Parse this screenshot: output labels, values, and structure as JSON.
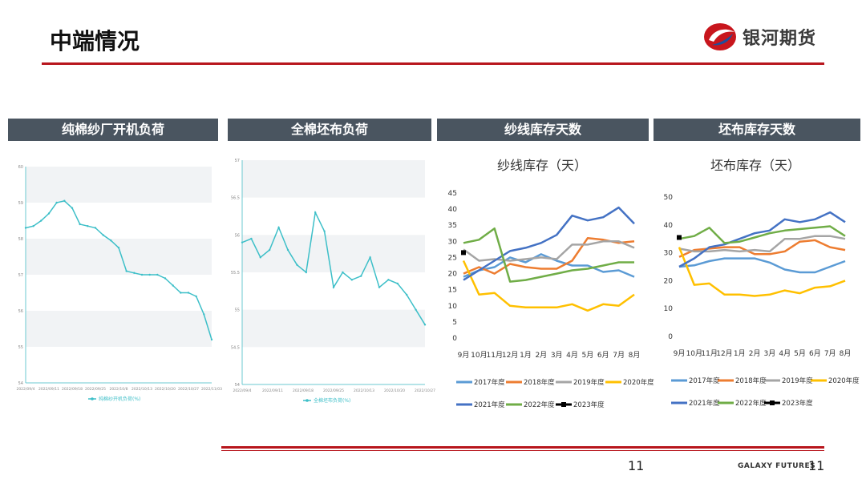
{
  "slide": {
    "title": "中端情况",
    "brand": "银河期货",
    "footer_brand": "GALAXY FUTURES",
    "page_number": "11",
    "page_number_left": "11"
  },
  "colors": {
    "accent_red": "#b8161d",
    "header_gray": "#4a5560",
    "teal_line": "#3dbfc8"
  },
  "panels": [
    {
      "header": "纯棉纱厂开机负荷"
    },
    {
      "header": "全棉坯布负荷"
    },
    {
      "header": "纱线库存天数"
    },
    {
      "header": "坯布库存天数"
    }
  ],
  "chart_data": [
    {
      "type": "line",
      "ylim": [
        54,
        60
      ],
      "yticks": [
        "54",
        "55",
        "56",
        "57",
        "58",
        "59",
        "60"
      ],
      "xticks": [
        "2022/09/4",
        "2022/09/11",
        "2022/09/18",
        "2022/09/25",
        "2022/10/8",
        "2022/10/13",
        "2022/10/20",
        "2022/10/27",
        "2022/11/03"
      ],
      "legend": "纯棉纱开机负荷(%)",
      "series": [
        {
          "values": [
            58.3,
            58.35,
            58.5,
            58.7,
            59.0,
            59.05,
            58.85,
            58.4,
            58.35,
            58.3,
            58.1,
            57.95,
            57.75,
            57.1,
            57.05,
            57.0,
            57.0,
            57.0,
            56.9,
            56.7,
            56.5,
            56.5,
            56.4,
            55.9,
            55.2
          ]
        }
      ]
    },
    {
      "type": "line",
      "ylim": [
        54,
        57
      ],
      "yticks": [
        "54",
        "54.5",
        "55",
        "55.5",
        "56",
        "56.5",
        "57"
      ],
      "xticks": [
        "2022/09/4",
        "2022/09/11",
        "2022/09/18",
        "2022/09/25",
        "2022/10/13",
        "2022/10/20",
        "2022/10/27"
      ],
      "legend": "全棉坯布负荷(%)",
      "series": [
        {
          "values": [
            55.9,
            55.95,
            55.7,
            55.8,
            56.1,
            55.8,
            55.6,
            55.5,
            56.3,
            56.05,
            55.3,
            55.5,
            55.4,
            55.45,
            55.7,
            55.3,
            55.4,
            55.35,
            55.2,
            55.0,
            54.8
          ]
        }
      ]
    },
    {
      "type": "line",
      "title": "纱线库存（天）",
      "ylim": [
        0,
        45
      ],
      "yticks": [
        0,
        5,
        10,
        15,
        20,
        25,
        30,
        35,
        40,
        45
      ],
      "categories": [
        "9月",
        "10月",
        "11月",
        "12月",
        "1月",
        "2月",
        "3月",
        "4月",
        "5月",
        "6月",
        "7月",
        "8月"
      ],
      "series": [
        {
          "name": "2017年度",
          "color": "#5b9bd5",
          "values": [
            19,
            21,
            22,
            25,
            23.5,
            26,
            24,
            22.5,
            22.5,
            20.5,
            21,
            19
          ]
        },
        {
          "name": "2018年度",
          "color": "#ed7d31",
          "values": [
            20,
            22,
            20,
            23,
            22,
            21.5,
            21.5,
            24,
            31,
            30.5,
            29.5,
            30
          ]
        },
        {
          "name": "2019年度",
          "color": "#a5a5a5",
          "values": [
            27.5,
            24,
            24.5,
            24,
            24.5,
            25,
            24.5,
            29,
            29,
            30,
            30,
            28
          ]
        },
        {
          "name": "2020年度",
          "color": "#ffc000",
          "values": [
            24,
            13.5,
            14,
            10,
            9.5,
            9.5,
            9.5,
            10.5,
            8.5,
            10.5,
            10,
            13.5
          ]
        },
        {
          "name": "2021年度",
          "color": "#4472c4",
          "values": [
            18,
            21,
            24,
            27,
            28,
            29.5,
            32,
            38,
            36.5,
            37.5,
            40.5,
            35.5
          ]
        },
        {
          "name": "2022年度",
          "color": "#70ad47",
          "values": [
            29.5,
            30.5,
            34,
            17.5,
            18,
            19,
            20,
            21,
            21.5,
            22.5,
            23.5,
            23.5
          ]
        },
        {
          "name": "2023年度",
          "color": "#000000",
          "values": [
            26.5,
            null,
            null,
            null,
            null,
            null,
            null,
            null,
            null,
            null,
            null,
            null
          ]
        }
      ]
    },
    {
      "type": "line",
      "title": "坯布库存（天）",
      "ylim": [
        0,
        50
      ],
      "yticks": [
        0,
        10,
        20,
        30,
        40,
        50
      ],
      "categories": [
        "9月",
        "10月",
        "11月",
        "12月",
        "1月",
        "2月",
        "3月",
        "4月",
        "5月",
        "6月",
        "7月",
        "8月"
      ],
      "series": [
        {
          "name": "2017年度",
          "color": "#5b9bd5",
          "values": [
            25,
            25.5,
            27,
            28,
            28,
            28,
            26.5,
            24,
            23,
            23,
            25,
            27
          ]
        },
        {
          "name": "2018年度",
          "color": "#ed7d31",
          "values": [
            28.5,
            31,
            31.5,
            32,
            32,
            29.5,
            29.5,
            30.5,
            34,
            34.5,
            32,
            31
          ]
        },
        {
          "name": "2019年度",
          "color": "#a5a5a5",
          "values": [
            31.5,
            30.5,
            30.5,
            31,
            30.5,
            31,
            30.5,
            35,
            35,
            36,
            36,
            35
          ]
        },
        {
          "name": "2020年度",
          "color": "#ffc000",
          "values": [
            32,
            18.5,
            19,
            15,
            15,
            14.5,
            15,
            16.5,
            15.5,
            17.5,
            18,
            20
          ]
        },
        {
          "name": "2021年度",
          "color": "#4472c4",
          "values": [
            25,
            28,
            32,
            33,
            35,
            37,
            38,
            42,
            41,
            42,
            44.5,
            41
          ]
        },
        {
          "name": "2022年度",
          "color": "#70ad47",
          "values": [
            35,
            36,
            39,
            33.5,
            34,
            35.5,
            37,
            38,
            38.5,
            39,
            39.5,
            36
          ]
        },
        {
          "name": "2023年度",
          "color": "#000000",
          "values": [
            35.5,
            null,
            null,
            null,
            null,
            null,
            null,
            null,
            null,
            null,
            null,
            null
          ]
        }
      ]
    }
  ]
}
